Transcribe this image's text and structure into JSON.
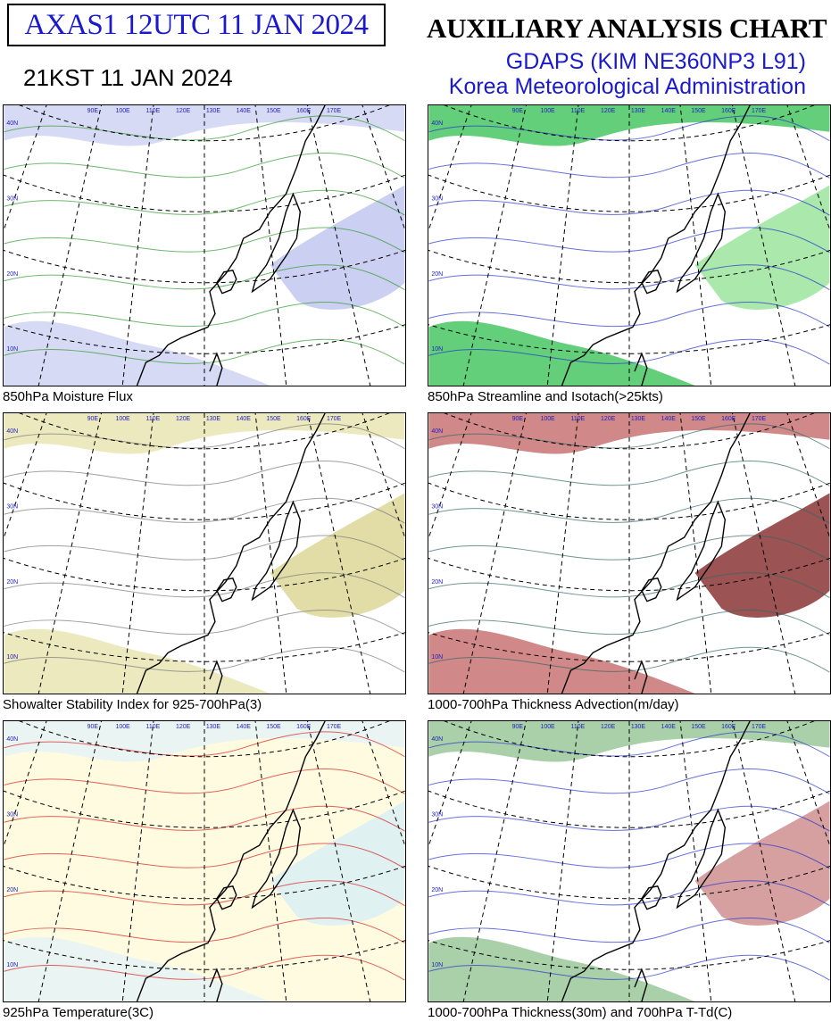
{
  "header": {
    "product_id": "AXAS1  12UTC 11 JAN 2024",
    "local_time": "21KST 11 JAN 2024",
    "title": "AUXILIARY ANALYSIS CHART  I",
    "model": "GDAPS (KIM NE360NP3 L91)",
    "agency": "Korea Meteorological Administration"
  },
  "map_grid": {
    "lat_labels": [
      "40N",
      "30N",
      "20N",
      "10N"
    ],
    "lon_labels": [
      "90E",
      "100E",
      "110E",
      "120E",
      "130E",
      "140E",
      "150E",
      "160E",
      "170E"
    ]
  },
  "panels": [
    {
      "caption": "850hPa Moisture Flux"
    },
    {
      "caption": "850hPa Streamline and Isotach(>25kts)"
    },
    {
      "caption": "Showalter Stability Index for 925-700hPa(3)"
    },
    {
      "caption": "1000-700hPa Thickness Advection(m/day)"
    },
    {
      "caption": "925hPa Temperature(3C)"
    },
    {
      "caption": "1000-700hPa Thickness(30m) and 700hPa T-Td(C)"
    }
  ]
}
